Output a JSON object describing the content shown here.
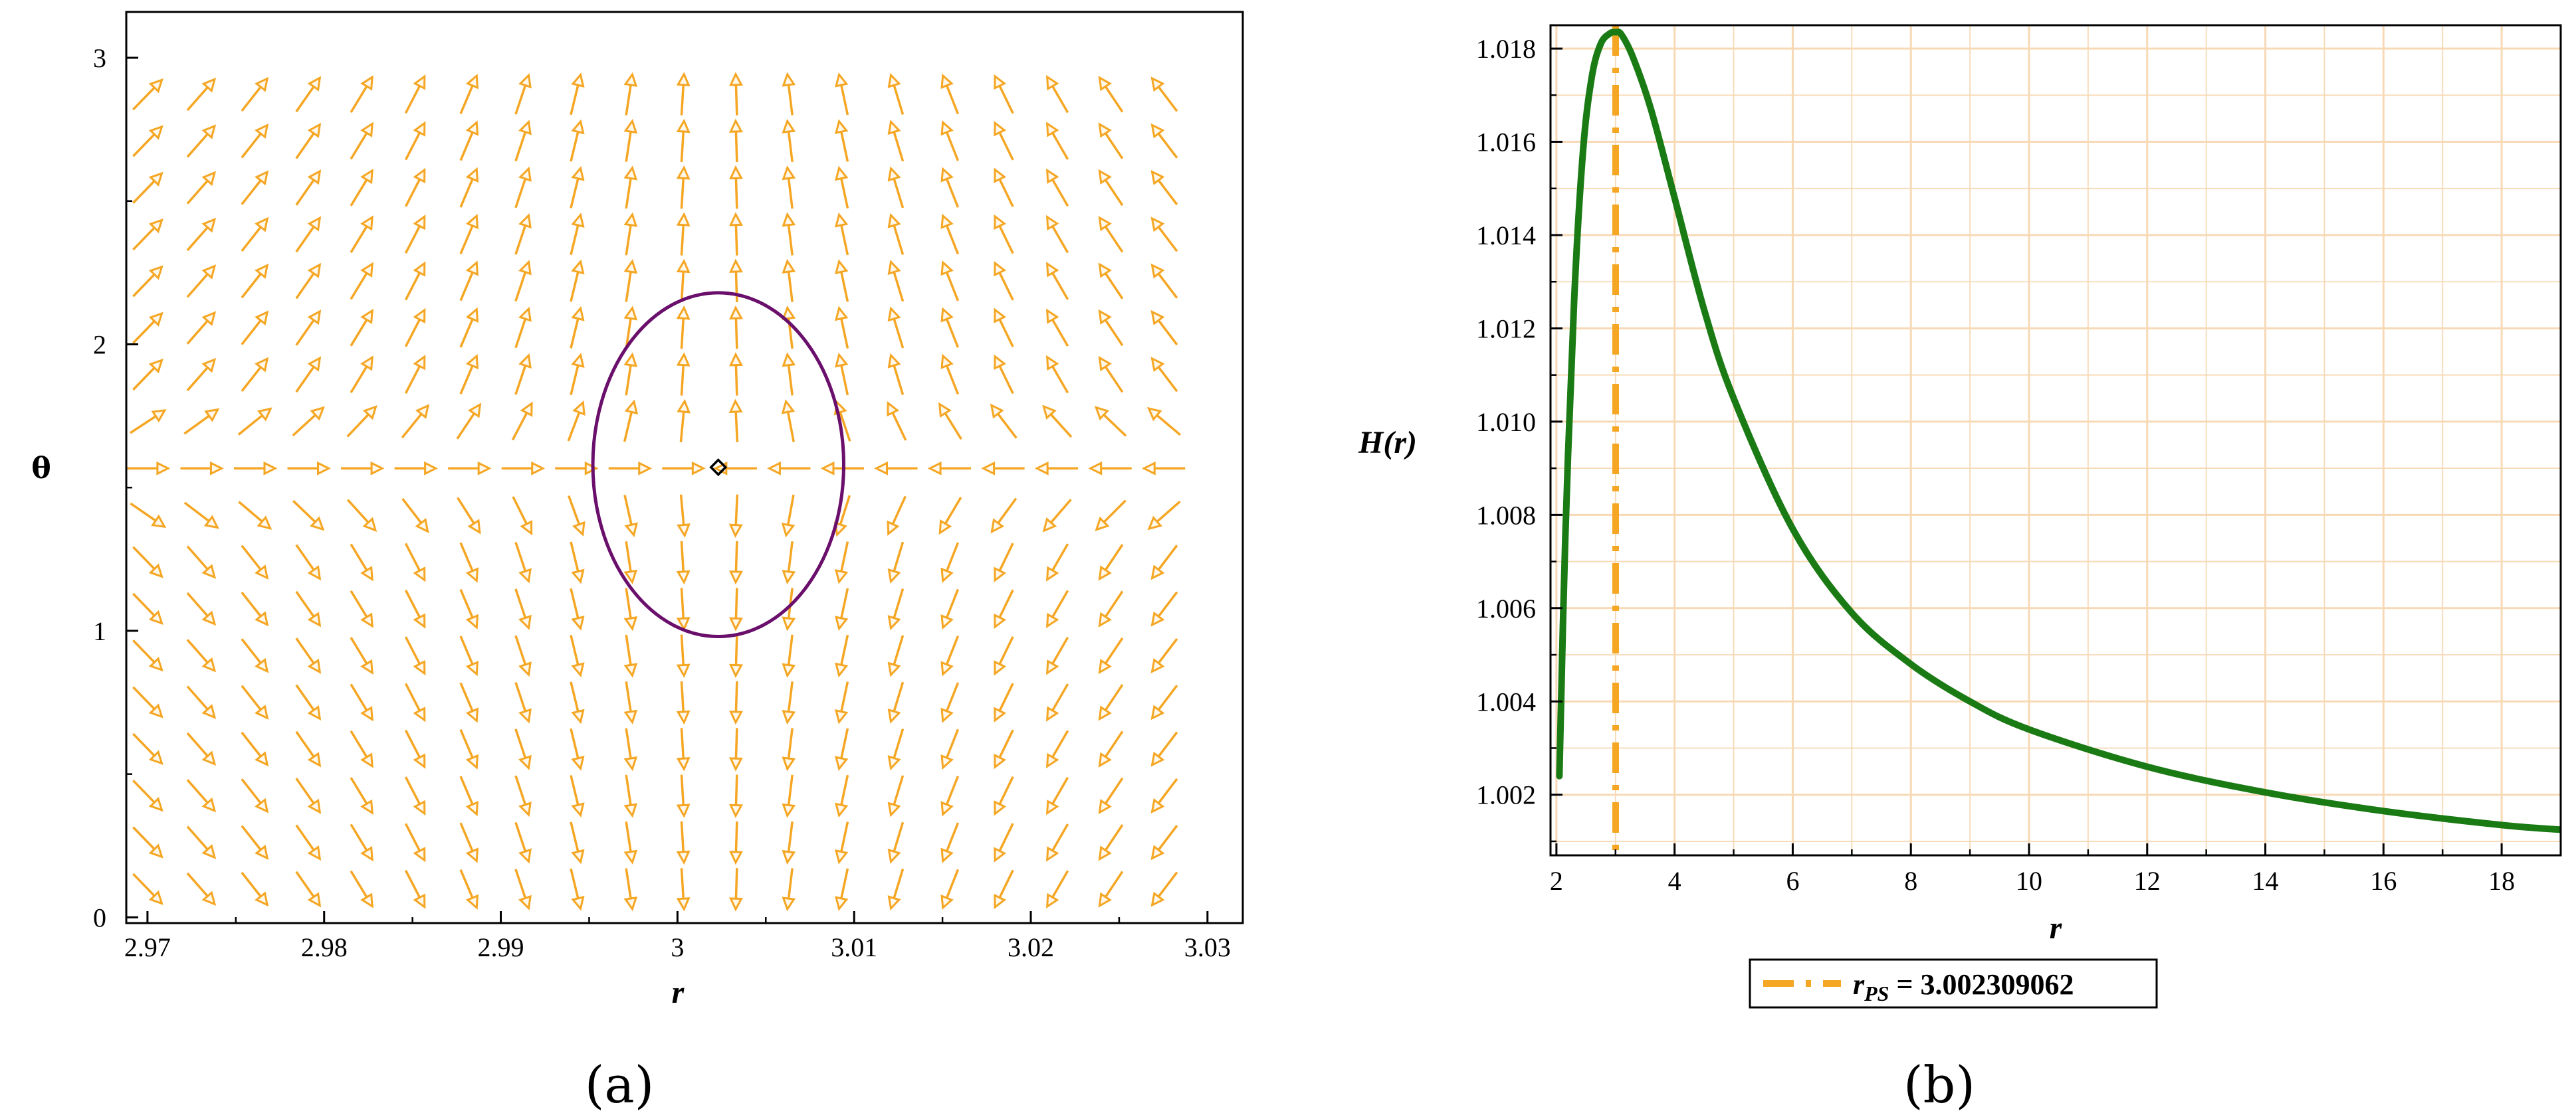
{
  "chart_data": [
    {
      "type": "vector-field",
      "panel_label": "(a)",
      "xlabel": "r",
      "ylabel": "θ",
      "xlim": [
        2.9688,
        3.032
      ],
      "ylim": [
        -0.02,
        3.16
      ],
      "xticks": [
        2.97,
        2.98,
        2.99,
        3,
        3.01,
        3.02,
        3.03
      ],
      "xtick_labels": [
        "2.97",
        "2.98",
        "2.99",
        "3",
        "3.01",
        "3.02",
        "3.03"
      ],
      "yticks": [
        0,
        1,
        2,
        3
      ],
      "ytick_labels": [
        "0",
        "1",
        "2",
        "3"
      ],
      "arrow_color": "#f5a623",
      "arrow_grid": {
        "x_start": 2.97,
        "x_step": 0.00303,
        "x_count": 20,
        "y_start": 0.1,
        "y_step": 0.163,
        "y_count": 18
      },
      "critical_point": {
        "r": 3.002309062,
        "theta": 1.5708
      },
      "contour": {
        "center_r": 3.00231,
        "center_theta": 1.58,
        "radius_r": 0.0071,
        "radius_theta": 0.6,
        "color": "#6a0f6b"
      }
    },
    {
      "type": "line",
      "panel_label": "(b)",
      "xlabel": "r",
      "ylabel": "H(r)",
      "xlim": [
        1.9,
        19.0
      ],
      "ylim": [
        1.0007,
        1.0185
      ],
      "xticks": [
        2,
        4,
        6,
        8,
        10,
        12,
        14,
        16,
        18
      ],
      "xtick_labels": [
        "2",
        "4",
        "6",
        "8",
        "10",
        "12",
        "14",
        "16",
        "18"
      ],
      "yticks": [
        1.002,
        1.004,
        1.006,
        1.008,
        1.01,
        1.012,
        1.014,
        1.016,
        1.018
      ],
      "ytick_labels": [
        "1.002",
        "1.004",
        "1.006",
        "1.008",
        "1.010",
        "1.012",
        "1.014",
        "1.016",
        "1.018"
      ],
      "grid": true,
      "grid_color": "#f7d9b5",
      "series": [
        {
          "color": "#1a7a14",
          "x": [
            2.05,
            2.15,
            2.3,
            2.45,
            2.6,
            2.75,
            2.9,
            3.0,
            3.1,
            3.3,
            3.6,
            4.0,
            4.5,
            5.0,
            6.0,
            7.0,
            8.0,
            9.0,
            10.0,
            12.0,
            14.0,
            16.0,
            18.0,
            19.0
          ],
          "y": [
            1.0024,
            1.0075,
            1.0126,
            1.0158,
            1.0174,
            1.0181,
            1.01832,
            1.01835,
            1.0183,
            1.0178,
            1.0167,
            1.0148,
            1.0124,
            1.0105,
            1.0077,
            1.0059,
            1.0048,
            1.004,
            1.0034,
            1.0026,
            1.00205,
            1.00165,
            1.00135,
            1.00125
          ]
        }
      ],
      "vline": {
        "x": 3.002309062,
        "color": "#f5a623",
        "style": "dash-dot"
      },
      "legend": {
        "placement": "bottom",
        "label_main": "r",
        "label_sub": "PS",
        "label_value": " = 3.002309062"
      }
    }
  ]
}
